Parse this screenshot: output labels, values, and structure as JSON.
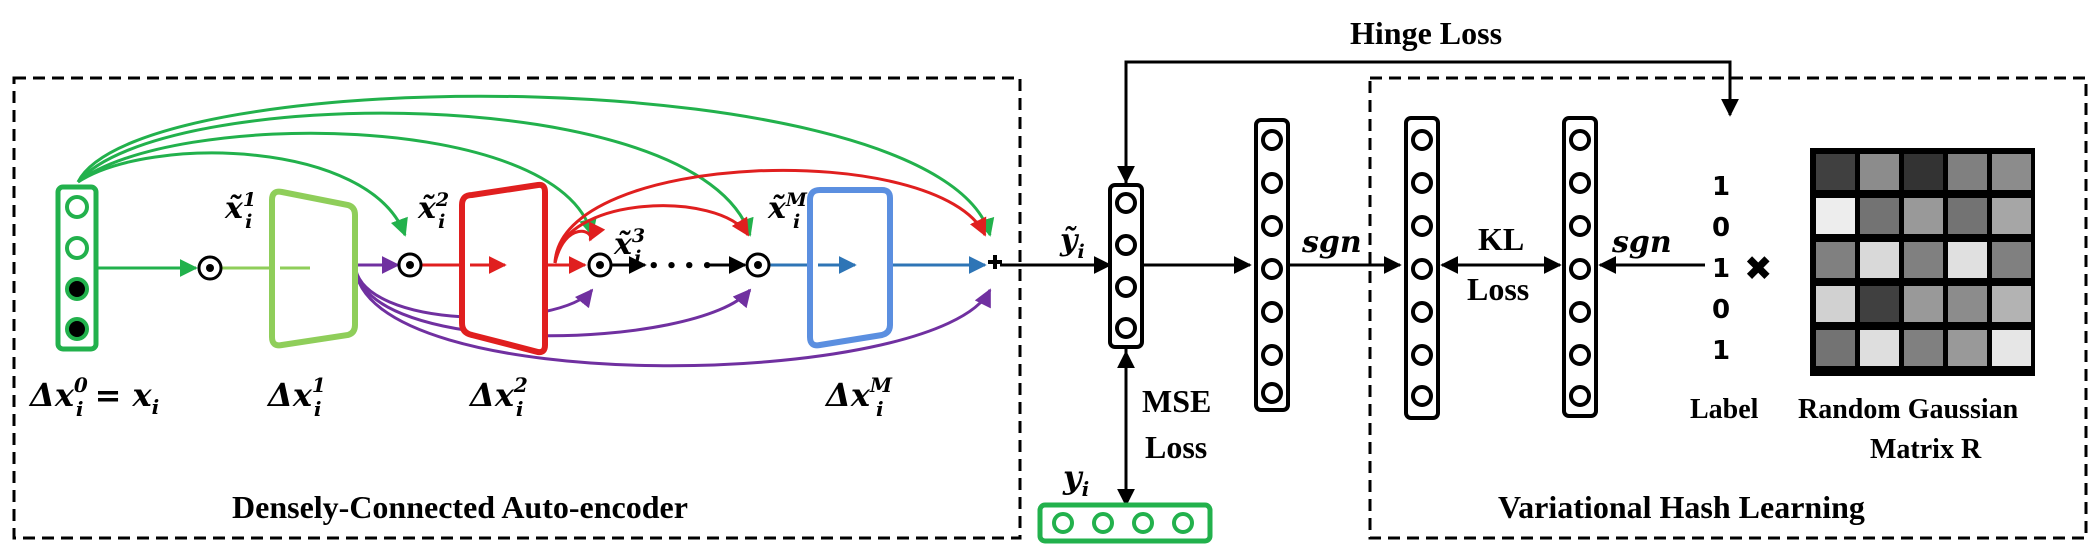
{
  "labels": {
    "hinge_loss": "Hinge Loss",
    "mse_loss_line1": "MSE",
    "mse_loss_line2": "Loss",
    "kl_loss_line1": "KL",
    "kl_loss_line2": "Loss",
    "sgn_left": "sgn",
    "sgn_right": "sgn",
    "label": "Label",
    "matrix_line1": "Random Gaussian",
    "matrix_line2": "Matrix R",
    "dense_title": "Densely-Connected Auto-encoder",
    "vhl_title": "Variational Hash Learning",
    "dx0": "Δx",
    "dx0_sub": "i",
    "dx0_sup": "0",
    "dx0_rhs": " = x",
    "dx0_rhs_sub": "i",
    "dx1": "Δx",
    "dx1_sub": "i",
    "dx1_sup": "1",
    "dx2": "Δx",
    "dx2_sub": "i",
    "dx2_sup": "2",
    "dxM": "Δx",
    "dxM_sub": "i",
    "dxM_sup": "M",
    "xt1": "x̃",
    "xt1_sub": "i",
    "xt1_sup": "1",
    "xt2": "x̃",
    "xt2_sub": "i",
    "xt2_sup": "2",
    "xt3": "x̃",
    "xt3_sub": "i",
    "xt3_sup": "3",
    "xtM": "x̃",
    "xtM_sub": "i",
    "xtM_sup": "M",
    "ytilde": "ỹ",
    "ytilde_sub": "i",
    "yi": "y",
    "yi_sub": "i",
    "dots": "• • • •",
    "times": "✖"
  },
  "label_bits": [
    "1",
    "0",
    "1",
    "0",
    "1"
  ],
  "matrix_gray": [
    [
      0.25,
      0.55,
      0.2,
      0.5,
      0.55
    ],
    [
      0.93,
      0.45,
      0.6,
      0.45,
      0.65
    ],
    [
      0.5,
      0.85,
      0.5,
      0.88,
      0.5
    ],
    [
      0.82,
      0.25,
      0.6,
      0.55,
      0.7
    ],
    [
      0.45,
      0.87,
      0.5,
      0.6,
      0.9
    ]
  ],
  "colors": {
    "green": "#22b14c",
    "light_green": "#8fce5a",
    "red": "#e01f1f",
    "blue": "#5b8fe0",
    "purple": "#7030a0",
    "black": "#000000"
  }
}
